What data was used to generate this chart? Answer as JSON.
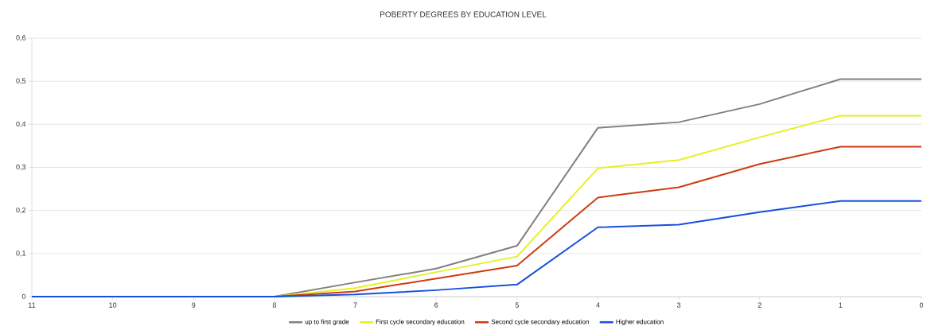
{
  "chart_data": {
    "type": "line",
    "title": "POBERTY DEGREES BY EDUCATION LEVEL",
    "x": [
      11,
      10,
      9,
      8,
      7,
      6,
      5,
      4,
      3,
      2,
      1,
      0
    ],
    "series": [
      {
        "name": "up to first grade",
        "color": "#808080",
        "values": [
          null,
          null,
          null,
          0,
          0.033,
          0.065,
          0.118,
          0.392,
          0.405,
          0.447,
          0.505,
          0.505
        ]
      },
      {
        "name": "First cycle secondary education",
        "color": "#e8f020",
        "values": [
          null,
          null,
          null,
          0,
          0.02,
          0.057,
          0.093,
          0.298,
          0.317,
          0.37,
          0.42,
          0.42
        ]
      },
      {
        "name": "Second cycle secondary education",
        "color": "#d03a10",
        "values": [
          null,
          null,
          null,
          0,
          0.012,
          0.042,
          0.072,
          0.23,
          0.254,
          0.308,
          0.348,
          0.348
        ]
      },
      {
        "name": "Higher education",
        "color": "#1550e0",
        "values": [
          0,
          0,
          0,
          0,
          0.005,
          0.015,
          0.028,
          0.161,
          0.167,
          0.196,
          0.222,
          0.222
        ]
      }
    ],
    "xlim": [
      11,
      0
    ],
    "xticks": [
      11,
      10,
      9,
      8,
      7,
      6,
      5,
      4,
      3,
      2,
      1,
      0
    ],
    "ylim": [
      0,
      0.6
    ],
    "yticks": [
      0,
      {
        "value": 0.1,
        "label": "0,1"
      },
      {
        "value": 0.2,
        "label": "0,2"
      },
      {
        "value": 0.3,
        "label": "0,3"
      },
      {
        "value": 0.4,
        "label": "0,4"
      },
      {
        "value": 0.5,
        "label": "0,5"
      },
      {
        "value": 0.6,
        "label": "0,6"
      }
    ],
    "grid": "y",
    "legend": "bottom"
  }
}
